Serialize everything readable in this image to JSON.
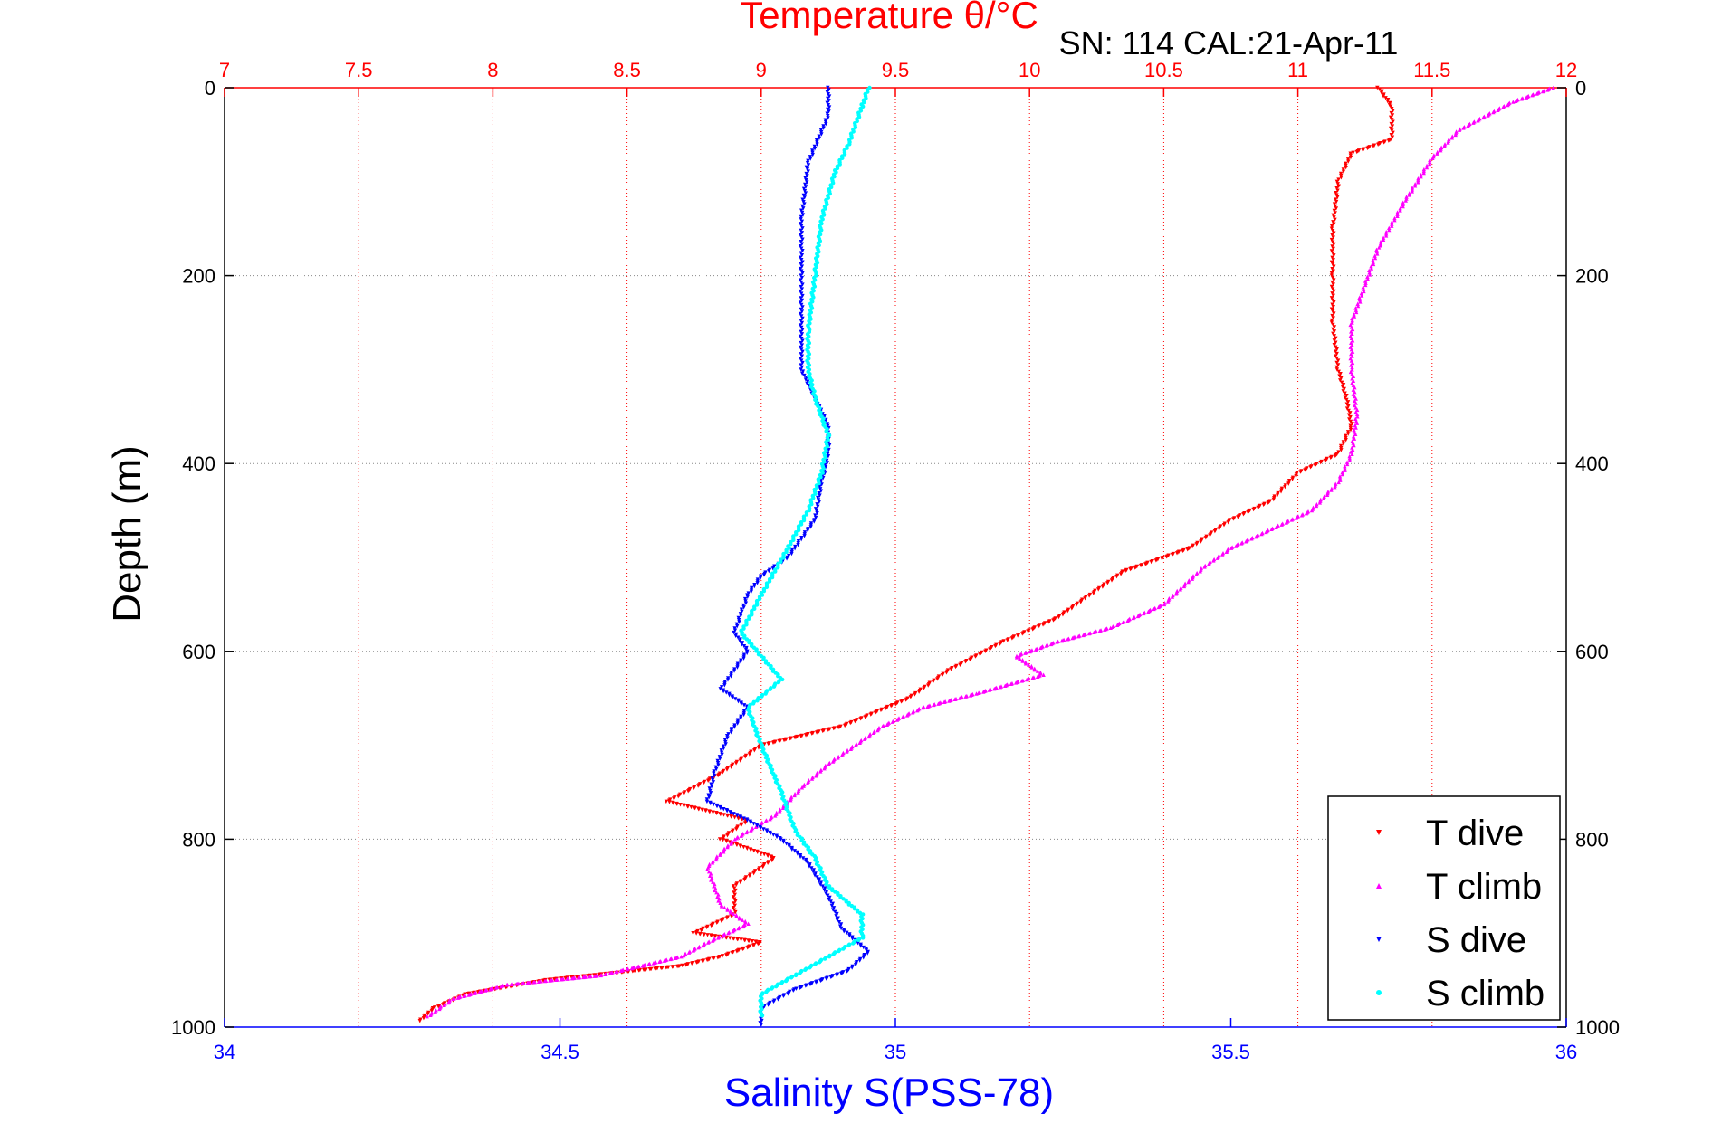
{
  "chart_data": {
    "type": "scatter",
    "title": "Temperature θ/°C",
    "subtitle": "SN: 114  CAL:21-Apr-11",
    "xlabel": "Salinity S(PSS-78)",
    "ylabel": "Depth (m)",
    "top_axis": {
      "label": "Temperature θ/°C",
      "lim": [
        7,
        12
      ],
      "ticks": [
        7,
        7.5,
        8,
        8.5,
        9,
        9.5,
        10,
        10.5,
        11,
        11.5,
        12
      ],
      "tick_labels": [
        "7",
        "7.5",
        "8",
        "8.5",
        "9",
        "9.5",
        "10",
        "10.5",
        "11",
        "11.5",
        "12"
      ]
    },
    "bottom_axis": {
      "label": "Salinity S(PSS-78)",
      "lim": [
        34,
        36
      ],
      "ticks": [
        34,
        34.5,
        35,
        35.5,
        36
      ],
      "tick_labels": [
        "34",
        "34.5",
        "35",
        "35.5",
        "36"
      ]
    },
    "y_axis": {
      "label": "Depth (m)",
      "lim": [
        0,
        1000
      ],
      "reversed": true,
      "ticks": [
        0,
        200,
        400,
        600,
        800,
        1000
      ],
      "tick_labels": [
        "0",
        "200",
        "400",
        "600",
        "800",
        "1000"
      ]
    },
    "grid": true,
    "legend": {
      "position": "bottom-right"
    },
    "colors": {
      "top_axis": "#ff0000",
      "bottom_axis": "#0000ff",
      "grid": "#888888"
    },
    "series": [
      {
        "name": "T dive",
        "axis": "top",
        "color": "#ff0000",
        "marker": "triangle-down",
        "points": [
          [
            11.3,
            0
          ],
          [
            11.35,
            20
          ],
          [
            11.35,
            55
          ],
          [
            11.2,
            70
          ],
          [
            11.15,
            100
          ],
          [
            11.13,
            150
          ],
          [
            11.13,
            200
          ],
          [
            11.13,
            250
          ],
          [
            11.15,
            300
          ],
          [
            11.18,
            330
          ],
          [
            11.2,
            360
          ],
          [
            11.15,
            390
          ],
          [
            11.0,
            410
          ],
          [
            10.9,
            440
          ],
          [
            10.75,
            460
          ],
          [
            10.6,
            490
          ],
          [
            10.35,
            515
          ],
          [
            10.2,
            545
          ],
          [
            10.1,
            565
          ],
          [
            9.9,
            590
          ],
          [
            9.7,
            620
          ],
          [
            9.55,
            650
          ],
          [
            9.3,
            680
          ],
          [
            9.0,
            700
          ],
          [
            8.85,
            730
          ],
          [
            8.65,
            760
          ],
          [
            8.95,
            780
          ],
          [
            8.85,
            800
          ],
          [
            9.05,
            820
          ],
          [
            8.9,
            850
          ],
          [
            8.9,
            880
          ],
          [
            8.75,
            900
          ],
          [
            9.0,
            910
          ],
          [
            8.85,
            925
          ],
          [
            8.7,
            935
          ],
          [
            8.2,
            950
          ],
          [
            7.9,
            965
          ],
          [
            7.78,
            980
          ],
          [
            7.72,
            995
          ]
        ]
      },
      {
        "name": "T climb",
        "axis": "top",
        "color": "#ff00ff",
        "marker": "triangle-up",
        "points": [
          [
            11.95,
            0
          ],
          [
            11.8,
            15
          ],
          [
            11.6,
            45
          ],
          [
            11.5,
            75
          ],
          [
            11.4,
            120
          ],
          [
            11.3,
            170
          ],
          [
            11.25,
            210
          ],
          [
            11.2,
            250
          ],
          [
            11.2,
            300
          ],
          [
            11.22,
            350
          ],
          [
            11.2,
            390
          ],
          [
            11.15,
            420
          ],
          [
            11.05,
            450
          ],
          [
            10.9,
            470
          ],
          [
            10.75,
            490
          ],
          [
            10.65,
            510
          ],
          [
            10.5,
            550
          ],
          [
            10.3,
            575
          ],
          [
            10.1,
            590
          ],
          [
            9.95,
            605
          ],
          [
            10.05,
            625
          ],
          [
            9.8,
            645
          ],
          [
            9.6,
            660
          ],
          [
            9.45,
            680
          ],
          [
            9.35,
            700
          ],
          [
            9.25,
            720
          ],
          [
            9.15,
            745
          ],
          [
            9.05,
            775
          ],
          [
            8.9,
            800
          ],
          [
            8.8,
            830
          ],
          [
            8.85,
            870
          ],
          [
            8.95,
            890
          ],
          [
            8.8,
            910
          ],
          [
            8.7,
            925
          ],
          [
            8.4,
            945
          ],
          [
            8.05,
            955
          ],
          [
            7.85,
            970
          ],
          [
            7.75,
            990
          ]
        ]
      },
      {
        "name": "S dive",
        "axis": "bottom",
        "color": "#0000ff",
        "marker": "triangle-down",
        "points": [
          [
            34.9,
            0
          ],
          [
            34.9,
            30
          ],
          [
            34.87,
            80
          ],
          [
            34.86,
            140
          ],
          [
            34.86,
            200
          ],
          [
            34.86,
            260
          ],
          [
            34.86,
            300
          ],
          [
            34.88,
            330
          ],
          [
            34.9,
            360
          ],
          [
            34.9,
            390
          ],
          [
            34.89,
            420
          ],
          [
            34.88,
            460
          ],
          [
            34.84,
            500
          ],
          [
            34.8,
            520
          ],
          [
            34.78,
            540
          ],
          [
            34.77,
            560
          ],
          [
            34.76,
            580
          ],
          [
            34.78,
            600
          ],
          [
            34.74,
            640
          ],
          [
            34.78,
            660
          ],
          [
            34.75,
            690
          ],
          [
            34.73,
            730
          ],
          [
            34.72,
            760
          ],
          [
            34.78,
            780
          ],
          [
            34.83,
            800
          ],
          [
            34.87,
            825
          ],
          [
            34.9,
            860
          ],
          [
            34.92,
            895
          ],
          [
            34.96,
            920
          ],
          [
            34.93,
            940
          ],
          [
            34.85,
            960
          ],
          [
            34.8,
            980
          ],
          [
            34.8,
            1000
          ]
        ]
      },
      {
        "name": "S climb",
        "axis": "bottom",
        "color": "#00ffff",
        "marker": "point",
        "points": [
          [
            34.96,
            0
          ],
          [
            34.95,
            20
          ],
          [
            34.93,
            60
          ],
          [
            34.91,
            90
          ],
          [
            34.89,
            140
          ],
          [
            34.88,
            200
          ],
          [
            34.87,
            260
          ],
          [
            34.87,
            300
          ],
          [
            34.88,
            330
          ],
          [
            34.9,
            370
          ],
          [
            34.89,
            410
          ],
          [
            34.87,
            450
          ],
          [
            34.84,
            490
          ],
          [
            34.8,
            540
          ],
          [
            34.77,
            580
          ],
          [
            34.83,
            630
          ],
          [
            34.78,
            660
          ],
          [
            34.8,
            700
          ],
          [
            34.83,
            750
          ],
          [
            34.85,
            790
          ],
          [
            34.88,
            820
          ],
          [
            34.9,
            850
          ],
          [
            34.95,
            880
          ],
          [
            34.95,
            905
          ],
          [
            34.9,
            925
          ],
          [
            34.85,
            945
          ],
          [
            34.8,
            965
          ],
          [
            34.8,
            990
          ]
        ]
      }
    ]
  }
}
